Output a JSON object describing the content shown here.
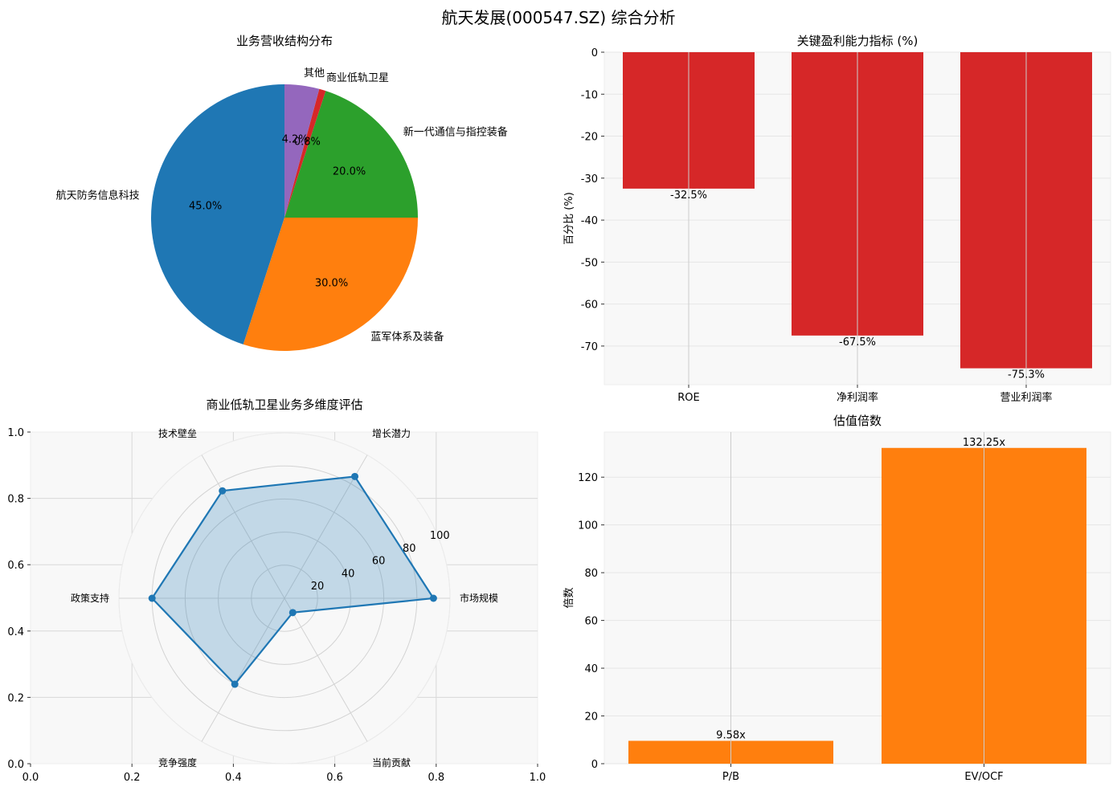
{
  "figure": {
    "title": "航天发展(000547.SZ) 综合分析"
  },
  "chart_data": [
    {
      "type": "pie",
      "title": "业务营收结构分布",
      "categories": [
        "航天防务信息科技",
        "蓝军体系及装备",
        "新一代通信与指控装备",
        "商业低轨卫星",
        "其他"
      ],
      "values": [
        45.0,
        30.0,
        20.0,
        0.8,
        4.2
      ],
      "labels_pct": [
        "45.0%",
        "30.0%",
        "20.0%",
        "0.8%",
        "4.2%"
      ],
      "colors": [
        "#1f77b4",
        "#ff7f0e",
        "#2ca02c",
        "#d62728",
        "#9467bd"
      ],
      "startangle": 90
    },
    {
      "type": "bar",
      "title": "关键盈利能力指标 (%)",
      "categories": [
        "ROE",
        "净利润率",
        "营业利润率"
      ],
      "values": [
        -32.5,
        -67.5,
        -75.3
      ],
      "value_labels": [
        "-32.5%",
        "-67.5%",
        "-75.3%"
      ],
      "xlabel": "",
      "ylabel": "百分比 (%)",
      "ylim": [
        -79.2,
        0
      ],
      "yticks": [
        0,
        -10,
        -20,
        -30,
        -40,
        -50,
        -60,
        -70
      ],
      "color": "#d62728",
      "grid": true
    },
    {
      "type": "radar",
      "title": "商业低轨卫星业务多维度评估",
      "categories": [
        "市场规模",
        "增长潜力",
        "技术壁垒",
        "政策支持",
        "竞争强度",
        "当前贡献"
      ],
      "values": [
        90,
        85,
        75,
        80,
        60,
        10
      ],
      "rlim": [
        0,
        100
      ],
      "rticks": [
        20,
        40,
        60,
        80,
        100
      ],
      "cartesian_xticks": [
        "0.0",
        "0.2",
        "0.4",
        "0.6",
        "0.8",
        "1.0"
      ],
      "cartesian_yticks": [
        "0.0",
        "0.2",
        "0.4",
        "0.6",
        "0.8",
        "1.0"
      ],
      "color": "#1f77b4"
    },
    {
      "type": "bar",
      "title": "估值倍数",
      "categories": [
        "P/B",
        "EV/OCF"
      ],
      "values": [
        9.58,
        132.25
      ],
      "value_labels": [
        "9.58x",
        "132.25x"
      ],
      "xlabel": "",
      "ylabel": "倍数",
      "ylim": [
        0,
        138.9
      ],
      "yticks": [
        0,
        20,
        40,
        60,
        80,
        100,
        120
      ],
      "color": "#ff7f0e",
      "grid": true
    }
  ]
}
